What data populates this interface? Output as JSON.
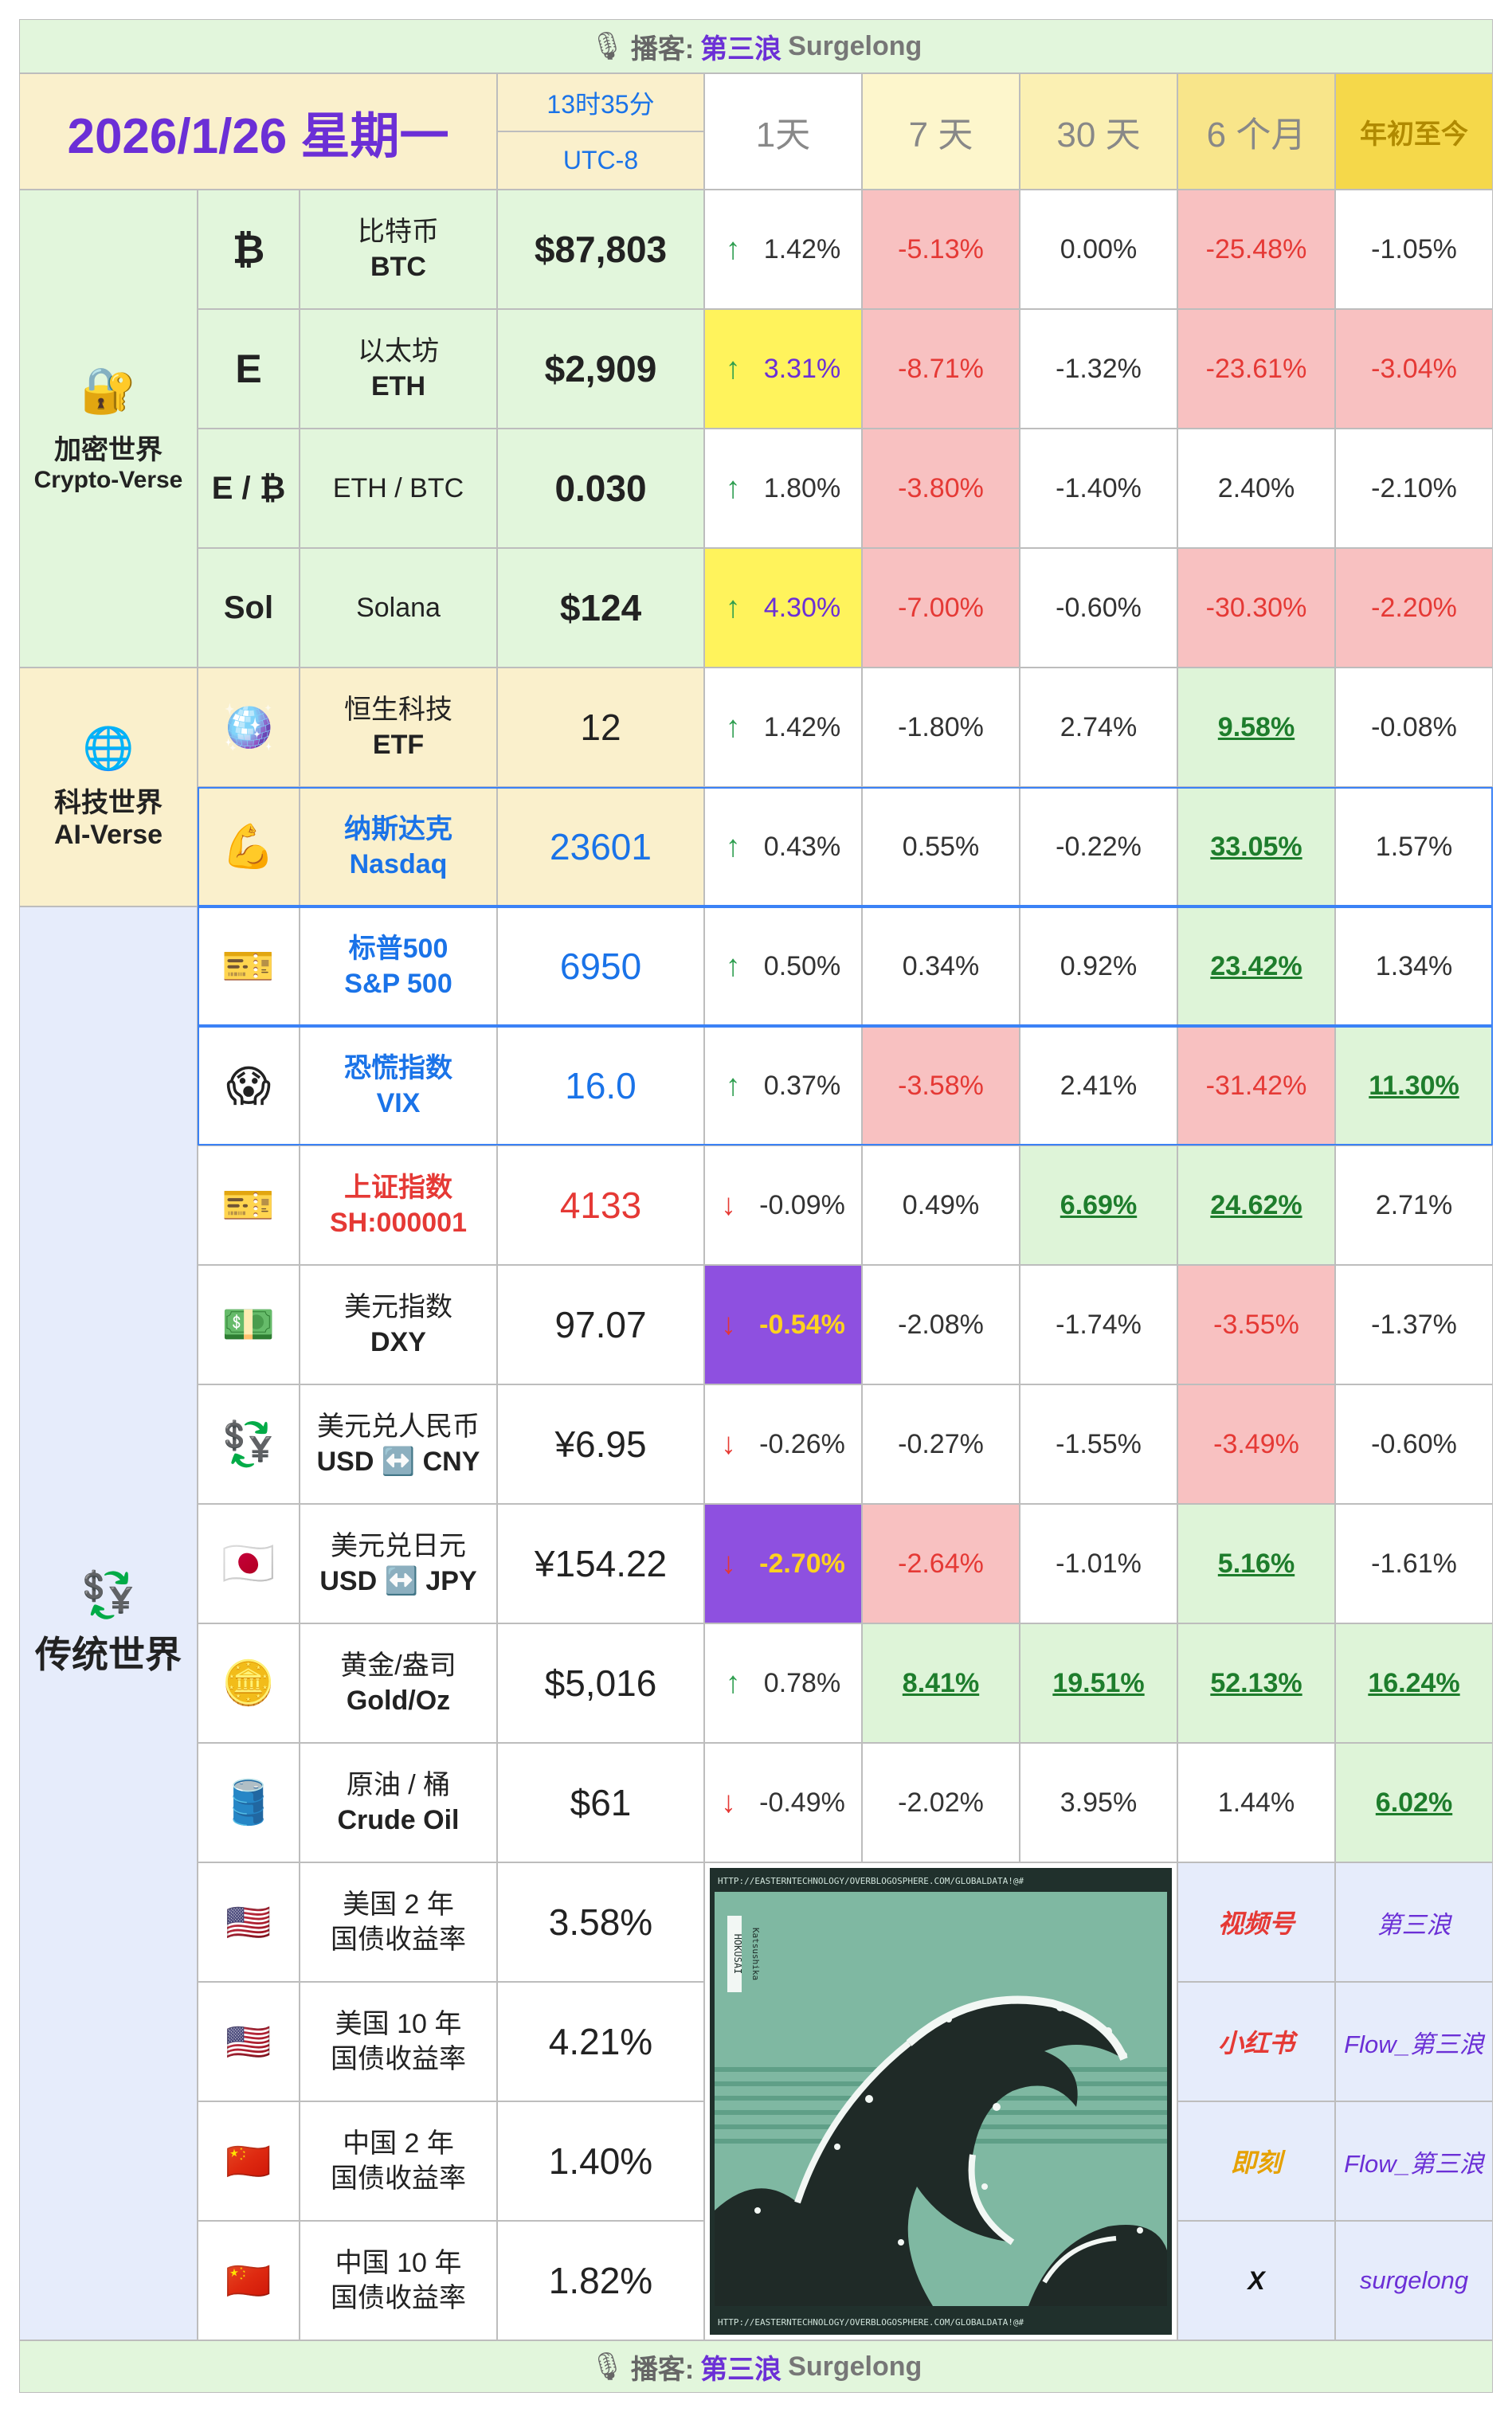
{
  "banner": {
    "label": "播客:",
    "host_cn": "第三浪",
    "host_en": "Surgelong",
    "icon": "microphone-icon"
  },
  "header": {
    "date": "2026/1/26 星期一",
    "time": "13时35分",
    "tz": "UTC-8",
    "periods": [
      "1天",
      "7 天",
      "30 天",
      "6 个月",
      "年初至今"
    ]
  },
  "sections": [
    {
      "cn": "加密世界",
      "en": "Crypto-Verse",
      "icon": "lock-key-icon"
    },
    {
      "cn": "科技世界",
      "en": "AI-Verse",
      "icon": "globe-icon"
    },
    {
      "cn": "传统世界",
      "en": "",
      "icon": "currency-exchange-icon"
    }
  ],
  "rows": [
    {
      "icon_text": "₿",
      "icon": "bitcoin-icon",
      "name": "比特币",
      "sub": "BTC",
      "value": "$87,803",
      "dir": "up",
      "changes": [
        "1.42%",
        "-5.13%",
        "0.00%",
        "-25.48%",
        "-1.05%"
      ]
    },
    {
      "icon_text": "E",
      "icon": "ethereum-icon",
      "name": "以太坊",
      "sub": "ETH",
      "value": "$2,909",
      "dir": "up",
      "changes": [
        "3.31%",
        "-8.71%",
        "-1.32%",
        "-23.61%",
        "-3.04%"
      ]
    },
    {
      "icon_text": "E / ₿",
      "icon": "eth-btc-icon",
      "name": "ETH / BTC",
      "sub": "",
      "value": "0.030",
      "dir": "up",
      "changes": [
        "1.80%",
        "-3.80%",
        "-1.40%",
        "2.40%",
        "-2.10%"
      ]
    },
    {
      "icon_text": "Sol",
      "icon": "solana-icon",
      "name": "Solana",
      "sub": "",
      "value": "$124",
      "dir": "up",
      "changes": [
        "4.30%",
        "-7.00%",
        "-0.60%",
        "-30.30%",
        "-2.20%"
      ]
    },
    {
      "icon_text": "",
      "icon": "disco-ball-icon",
      "name": "恒生科技",
      "sub": "ETF",
      "value": "12",
      "dir": "up",
      "changes": [
        "1.42%",
        "-1.80%",
        "2.74%",
        "9.58%",
        "-0.08%"
      ]
    },
    {
      "icon_text": "",
      "icon": "flexed-arm-icon",
      "name": "纳斯达克",
      "sub": "Nasdaq",
      "value": "23601",
      "dir": "up",
      "changes": [
        "0.43%",
        "0.55%",
        "-0.22%",
        "33.05%",
        "1.57%"
      ]
    },
    {
      "icon_text": "",
      "icon": "ticket-icon",
      "name": "标普500",
      "sub": "S&P 500",
      "value": "6950",
      "dir": "up",
      "changes": [
        "0.50%",
        "0.34%",
        "0.92%",
        "23.42%",
        "1.34%"
      ]
    },
    {
      "icon_text": "",
      "icon": "screaming-face-icon",
      "name": "恐慌指数",
      "sub": "VIX",
      "value": "16.0",
      "dir": "up",
      "changes": [
        "0.37%",
        "-3.58%",
        "2.41%",
        "-31.42%",
        "11.30%"
      ]
    },
    {
      "icon_text": "",
      "icon": "ticket-icon",
      "name": "上证指数",
      "sub": "SH:000001",
      "value": "4133",
      "dir": "down",
      "changes": [
        "-0.09%",
        "0.49%",
        "6.69%",
        "24.62%",
        "2.71%"
      ]
    },
    {
      "icon_text": "",
      "icon": "dollar-banknote-icon",
      "name": "美元指数",
      "sub": "DXY",
      "value": "97.07",
      "dir": "down",
      "changes": [
        "-0.54%",
        "-2.08%",
        "-1.74%",
        "-3.55%",
        "-1.37%"
      ]
    },
    {
      "icon_text": "",
      "icon": "currency-exchange-icon",
      "name": "美元兑人民币",
      "sub": "USD ↔️ CNY",
      "value": "¥6.95",
      "dir": "down",
      "changes": [
        "-0.26%",
        "-0.27%",
        "-1.55%",
        "-3.49%",
        "-0.60%"
      ]
    },
    {
      "icon_text": "",
      "icon": "japan-flag-icon",
      "name": "美元兑日元",
      "sub": "USD ↔️ JPY",
      "value": "¥154.22",
      "dir": "down",
      "changes": [
        "-2.70%",
        "-2.64%",
        "-1.01%",
        "5.16%",
        "-1.61%"
      ]
    },
    {
      "icon_text": "",
      "icon": "gold-bar-icon",
      "name": "黄金/盎司",
      "sub": "Gold/Oz",
      "value": "$5,016",
      "dir": "up",
      "changes": [
        "0.78%",
        "8.41%",
        "19.51%",
        "52.13%",
        "16.24%"
      ]
    },
    {
      "icon_text": "",
      "icon": "oil-barrel-icon",
      "name": "原油 / 桶",
      "sub": "Crude Oil",
      "value": "$61",
      "dir": "down",
      "changes": [
        "-0.49%",
        "-2.02%",
        "3.95%",
        "1.44%",
        "6.02%"
      ]
    }
  ],
  "bonds": [
    {
      "icon": "us-flag-icon",
      "name": "美国 2 年",
      "sub": "国债收益率",
      "value": "3.58%"
    },
    {
      "icon": "us-flag-icon",
      "name": "美国 10 年",
      "sub": "国债收益率",
      "value": "4.21%"
    },
    {
      "icon": "china-flag-icon",
      "name": "中国 2 年",
      "sub": "国债收益率",
      "value": "1.40%"
    },
    {
      "icon": "china-flag-icon",
      "name": "中国 10 年",
      "sub": "国债收益率",
      "value": "1.82%"
    }
  ],
  "art": {
    "url_text": "HTTP://EASTERNTECHNOLOGY/OVERBLOGOSPHERE.COM/GLOBALDATA!@#",
    "stamp": "HOKUSAI",
    "side_text": "Katsushika",
    "icon": "great-wave-circuit-image"
  },
  "socials": [
    {
      "platform": "视频号",
      "handle": "第三浪",
      "color": "#e53935"
    },
    {
      "platform": "小红书",
      "handle": "Flow_第三浪",
      "color": "#e53935"
    },
    {
      "platform": "即刻",
      "handle": "Flow_第三浪",
      "color": "#e6a100"
    },
    {
      "platform": "X",
      "handle": "surgelong",
      "color": "#111111"
    }
  ],
  "colors": {
    "up_arrow": "#2e9e4f",
    "down_arrow": "#e53935",
    "neg_bg": "#f8c1c1",
    "neg_text": "#e53935",
    "pos_bg": "#def4d8",
    "pos_text": "#1e7d2c",
    "yellow_bg": "#fff35c",
    "purple_bg": "#8e50e0",
    "purple_text": "#ffd21f",
    "blue_text": "#1a73e8",
    "red_text": "#e53935",
    "crypto_bg": "#e2f6dc",
    "tech_bg": "#faf0cc",
    "trad_bg": "#e6ecfb",
    "banner_bg": "#e2f6dc",
    "date_purple": "#6b2fd6"
  }
}
